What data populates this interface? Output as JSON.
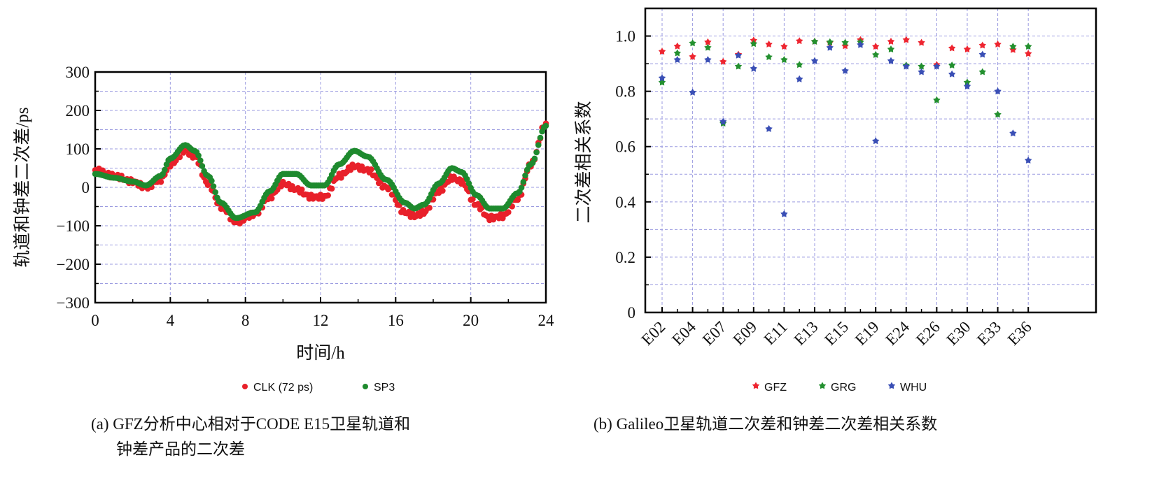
{
  "chart_data": [
    {
      "type": "scatter",
      "caption_line1": "(a) GFZ分析中心相对于CODE E15卫星轨道和",
      "caption_line2": "钟差产品的二次差",
      "xlabel": "时间/h",
      "ylabel": "轨道和钟差二次差/ps",
      "xlim": [
        0,
        24
      ],
      "ylim": [
        -300,
        300
      ],
      "xticks": [
        "0",
        "4",
        "8",
        "12",
        "16",
        "20",
        "24"
      ],
      "yticks": [
        "300",
        "200",
        "100",
        "0",
        "−100",
        "−200",
        "−300"
      ],
      "grid": true,
      "legend_position": "bottom",
      "series": [
        {
          "name": "CLK (72 ps)",
          "color": "#e8202a",
          "x": [
            0,
            1,
            2,
            2.7,
            3.5,
            4,
            4.8,
            5.3,
            6,
            6.7,
            7.5,
            8.5,
            9.3,
            10,
            10.7,
            11.5,
            12.2,
            13,
            13.8,
            14.5,
            15.5,
            16.5,
            17,
            17.5,
            18.3,
            19,
            19.5,
            20.3,
            21,
            21.7,
            22.5,
            23.2,
            24
          ],
          "y": [
            45,
            30,
            15,
            0,
            20,
            60,
            95,
            80,
            10,
            -50,
            -90,
            -70,
            -25,
            10,
            -5,
            -25,
            -25,
            30,
            55,
            45,
            0,
            -65,
            -75,
            -65,
            -10,
            25,
            15,
            -45,
            -80,
            -75,
            -30,
            60,
            165
          ]
        },
        {
          "name": "SP3",
          "color": "#1e8a2e",
          "x": [
            0,
            1,
            2,
            2.7,
            3.5,
            4,
            4.8,
            5.3,
            6,
            6.7,
            7.5,
            8.5,
            9.3,
            10,
            10.7,
            11.5,
            12.2,
            13,
            13.8,
            14.5,
            15.5,
            16.5,
            17,
            17.5,
            18.3,
            19,
            19.5,
            20.3,
            21,
            21.7,
            22.5,
            23.2,
            24
          ],
          "y": [
            35,
            25,
            15,
            5,
            30,
            75,
            110,
            95,
            30,
            -40,
            -80,
            -65,
            -10,
            35,
            35,
            5,
            5,
            60,
            95,
            80,
            20,
            -40,
            -55,
            -45,
            10,
            50,
            40,
            -20,
            -55,
            -55,
            -15,
            60,
            160
          ]
        }
      ]
    },
    {
      "type": "scatter",
      "caption": "(b) Galileo卫星轨道二次差和钟差二次差相关系数",
      "ylabel": "二次差相关系数",
      "ylim": [
        0,
        1.1
      ],
      "yticks": [
        "0",
        "0.2",
        "0.4",
        "0.6",
        "0.8",
        "1.0"
      ],
      "xtick_labels": [
        "E02",
        "E04",
        "E07",
        "E09",
        "E11",
        "E13",
        "E15",
        "E19",
        "E24",
        "E26",
        "E30",
        "E33",
        "E36"
      ],
      "n_satellites": 25,
      "grid": true,
      "legend_position": "bottom",
      "series": [
        {
          "name": "GFZ",
          "color": "#ee2530",
          "values": [
            0.944,
            0.963,
            0.925,
            0.978,
            0.907,
            0.933,
            0.984,
            0.97,
            0.962,
            0.982,
            0.98,
            0.976,
            0.964,
            0.986,
            0.962,
            0.98,
            0.986,
            0.976,
            0.896,
            0.956,
            0.952,
            0.966,
            0.97,
            0.95,
            0.936
          ]
        },
        {
          "name": "GRG",
          "color": "#23902f",
          "values": [
            0.832,
            0.938,
            0.974,
            0.958,
            0.684,
            0.89,
            0.972,
            0.924,
            0.914,
            0.896,
            0.98,
            0.978,
            0.976,
            0.978,
            0.932,
            0.952,
            0.894,
            0.89,
            0.768,
            0.894,
            0.832,
            0.87,
            0.716,
            0.962,
            0.962
          ]
        },
        {
          "name": "WHU",
          "color": "#3a4fb5",
          "values": [
            0.848,
            0.914,
            0.796,
            0.914,
            0.69,
            0.93,
            0.882,
            0.664,
            0.356,
            0.844,
            0.91,
            0.958,
            0.874,
            0.968,
            0.62,
            0.91,
            0.89,
            0.87,
            0.89,
            0.862,
            0.818,
            0.933,
            0.8,
            0.648,
            0.55
          ]
        }
      ]
    }
  ]
}
